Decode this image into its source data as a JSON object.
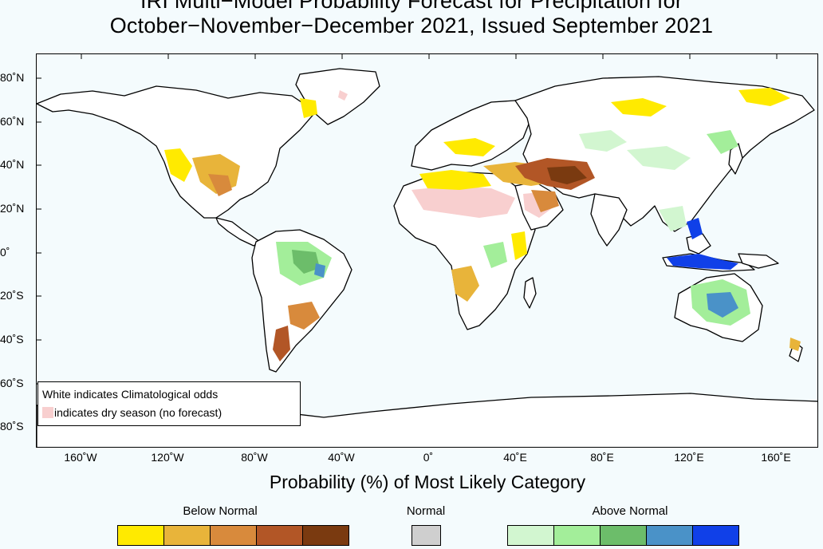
{
  "title": {
    "line1": "IRI Multi−Model Probability Forecast for Precipitation for",
    "line2": "October−November−December 2021, Issued September 2021"
  },
  "map": {
    "lat_ticks": [
      "80˚N",
      "60˚N",
      "40˚N",
      "20˚N",
      "0˚",
      "20˚S",
      "40˚S",
      "60˚S",
      "80˚S"
    ],
    "lon_ticks": [
      "160˚W",
      "120˚W",
      "80˚W",
      "40˚W",
      "0˚",
      "40˚E",
      "80˚E",
      "120˚E",
      "160˚E"
    ],
    "ocean_color": "#f4fbfd",
    "land_color": "#ffffff"
  },
  "legend_note": {
    "line1": "White indicates Climatological odds",
    "line2": "indicates dry season (no forecast)",
    "dry_season_color": "#f8cfcf"
  },
  "probability": {
    "title": "Probability (%) of Most Likely Category",
    "categories": [
      {
        "label": "Below Normal",
        "colors": [
          "#ffea00",
          "#e8b43a",
          "#d88a3c",
          "#b25626",
          "#7a3a10"
        ]
      },
      {
        "label": "Normal",
        "colors": [
          "#cfcfcf"
        ]
      },
      {
        "label": "Above Normal",
        "colors": [
          "#d2f6d0",
          "#a3ee9a",
          "#6cbd6a",
          "#4a92c8",
          "#1040e8"
        ]
      }
    ]
  }
}
